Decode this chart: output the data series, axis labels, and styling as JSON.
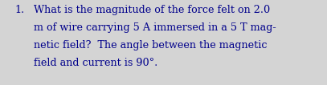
{
  "background_color": "#d4d4d4",
  "text_color": "#00008b",
  "number": "1.",
  "line1": "What is the magnitude of the force felt on 2.0",
  "line2": "m of wire carrying 5 A immersed in a 5 T mag-",
  "line3": "netic field?  The angle between the magnetic",
  "line4": "field and current is 90°.",
  "font_size": 9.2,
  "font_family": "serif",
  "figsize": [
    4.07,
    1.06
  ],
  "dpi": 100
}
